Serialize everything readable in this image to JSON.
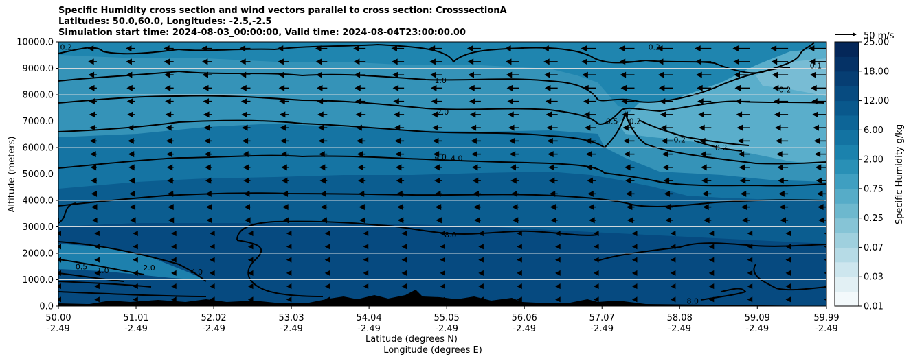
{
  "chart_data": {
    "type": "contour",
    "title_lines": [
      "Specific Humidity cross section and wind vectors parallel to cross section: CrosssectionA",
      "Latitudes: 50.0,60.0, Longitudes: -2.5,-2.5",
      "Simulation start time: 2024-08-03_00:00:00, Valid time: 2024-08-04T23:00:00.00"
    ],
    "ylabel": "Altitude (meters)",
    "xlabel_lat": "Latitude (degrees N)",
    "xlabel_lon": "Longitude (degrees E)",
    "xlim": [
      50.0,
      59.99
    ],
    "ylim": [
      0,
      10000
    ],
    "y_ticks": [
      0,
      1000,
      2000,
      3000,
      4000,
      5000,
      6000,
      7000,
      8000,
      9000,
      10000
    ],
    "y_tick_labels": [
      "0.0",
      "1000.0",
      "2000.0",
      "3000.0",
      "4000.0",
      "5000.0",
      "6000.0",
      "7000.0",
      "8000.0",
      "9000.0",
      "10000.0"
    ],
    "x_ticks": [
      50.0,
      51.01,
      52.02,
      53.03,
      54.04,
      55.05,
      56.06,
      57.07,
      58.08,
      59.09,
      59.99
    ],
    "x_tick_lat_labels": [
      "50.00",
      "51.01",
      "52.02",
      "53.03",
      "54.04",
      "55.05",
      "56.06",
      "57.07",
      "58.08",
      "59.09",
      "59.99"
    ],
    "x_tick_lon_labels": [
      "-2.49",
      "-2.49",
      "-2.49",
      "-2.49",
      "-2.49",
      "-2.49",
      "-2.49",
      "-2.49",
      "-2.49",
      "-2.49",
      "-2.49"
    ],
    "colorbar": {
      "label": "Specific Humidity g/kg",
      "levels": [
        0.01,
        0.02,
        0.03,
        0.05,
        0.07,
        0.1,
        0.25,
        0.5,
        0.75,
        1.0,
        2.0,
        4.0,
        6.0,
        8.0,
        12.0,
        15.0,
        18.0,
        20.0,
        25.0
      ],
      "tick_labels": [
        "0.01",
        "0.03",
        "0.07",
        "0.25",
        "0.75",
        "2.00",
        "6.00",
        "12.00",
        "18.00",
        "25.00"
      ],
      "colors": [
        "#f3f9fb",
        "#e2f0f4",
        "#cde6ee",
        "#b6dbe6",
        "#9fd0de",
        "#86c4d6",
        "#6db8ce",
        "#56acc8",
        "#3f9fc1",
        "#2990b6",
        "#1b82ad",
        "#1373a2",
        "#0d6597",
        "#09588c",
        "#074b80",
        "#063e73",
        "#053266",
        "#042759"
      ]
    },
    "wind_reference": {
      "label": "50 m/s",
      "speed": 50
    },
    "contour_labels": [
      {
        "text": "0.1",
        "lat": 59.85,
        "alt": 9100
      },
      {
        "text": "0.2",
        "lat": 59.45,
        "alt": 8200
      },
      {
        "text": "0.2",
        "lat": 57.75,
        "alt": 9800
      },
      {
        "text": "0.2",
        "lat": 50.1,
        "alt": 9800
      },
      {
        "text": "0.2",
        "lat": 57.5,
        "alt": 7000
      },
      {
        "text": "0.2",
        "lat": 58.08,
        "alt": 6300
      },
      {
        "text": "0.2",
        "lat": 58.62,
        "alt": 6000
      },
      {
        "text": "0.5",
        "lat": 57.2,
        "alt": 7000
      },
      {
        "text": "1.0",
        "lat": 54.97,
        "alt": 8550
      },
      {
        "text": "2.0",
        "lat": 55.0,
        "alt": 7350
      },
      {
        "text": "4.0",
        "lat": 54.97,
        "alt": 5650
      },
      {
        "text": "4.0",
        "lat": 55.18,
        "alt": 5600
      },
      {
        "text": "8.0",
        "lat": 55.1,
        "alt": 2700
      },
      {
        "text": "8.0",
        "lat": 58.25,
        "alt": 200
      },
      {
        "text": "0.5",
        "lat": 50.3,
        "alt": 1500
      },
      {
        "text": "1.0",
        "lat": 50.58,
        "alt": 1350
      },
      {
        "text": "2.0",
        "lat": 51.18,
        "alt": 1450
      },
      {
        "text": "4.0",
        "lat": 51.8,
        "alt": 1300
      }
    ]
  }
}
